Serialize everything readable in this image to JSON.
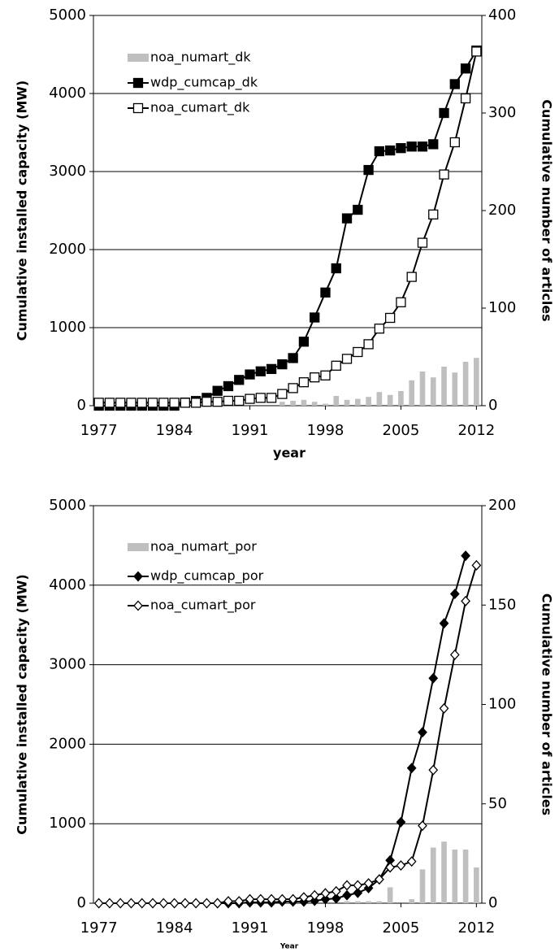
{
  "chart_data": [
    {
      "type": "combo",
      "x_label": "year",
      "y_label": "Cumulative installed capacity (MW)",
      "y2_label": "Cumulative number of articles",
      "x": [
        1977,
        1978,
        1979,
        1980,
        1981,
        1982,
        1983,
        1984,
        1985,
        1986,
        1987,
        1988,
        1989,
        1990,
        1991,
        1992,
        1993,
        1994,
        1995,
        1996,
        1997,
        1998,
        1999,
        2000,
        2001,
        2002,
        2003,
        2004,
        2005,
        2006,
        2007,
        2008,
        2009,
        2010,
        2011,
        2012
      ],
      "xlim": [
        1976.5,
        2012.5
      ],
      "xticks": [
        1977,
        1984,
        1991,
        1998,
        2005,
        2012
      ],
      "ylim": [
        0,
        5000
      ],
      "yticks": [
        0,
        1000,
        2000,
        3000,
        4000,
        5000
      ],
      "y2lim": [
        0,
        400
      ],
      "y2ticks": [
        0,
        100,
        200,
        300,
        400
      ],
      "grid": true,
      "legend": "upper left",
      "series": [
        {
          "name": "noa_numart_dk",
          "kind": "bar",
          "color": "#bfbfbf",
          "axis": "y2",
          "values": [
            0,
            0,
            0,
            0,
            0,
            0,
            0,
            0,
            0,
            0,
            0,
            0,
            0,
            0,
            0,
            0,
            0,
            4,
            5,
            6,
            4,
            2,
            10,
            6,
            7,
            9,
            14,
            11,
            15,
            26,
            35,
            29,
            40,
            34,
            45,
            49
          ]
        },
        {
          "name": "wdp_cumcap_dk",
          "kind": "line",
          "color": "#000000",
          "marker": "square",
          "marker_fill": "#000000",
          "values": [
            0,
            0,
            0,
            0,
            0,
            0,
            0,
            0,
            40,
            60,
            100,
            190,
            250,
            330,
            400,
            440,
            470,
            530,
            610,
            820,
            1130,
            1450,
            1760,
            2400,
            2510,
            3020,
            3260,
            3270,
            3300,
            3320,
            3320,
            3350,
            3750,
            4120,
            4320,
            4550
          ]
        },
        {
          "name": "noa_cumart_dk",
          "kind": "line",
          "color": "#000000",
          "marker": "square",
          "marker_fill": "#ffffff",
          "axis": "y2",
          "values": [
            3,
            3,
            3,
            3,
            3,
            3,
            3,
            3,
            3,
            3,
            4,
            4,
            5,
            5,
            7,
            8,
            8,
            12,
            18,
            24,
            29,
            31,
            41,
            48,
            55,
            63,
            79,
            90,
            106,
            132,
            167,
            196,
            237,
            270,
            315,
            363
          ]
        }
      ]
    },
    {
      "type": "combo",
      "x_label": "Year",
      "y_label": "Cumulative installed capacity (MW)",
      "y2_label": "Cumulative number of articles",
      "x": [
        1977,
        1978,
        1979,
        1980,
        1981,
        1982,
        1983,
        1984,
        1985,
        1986,
        1987,
        1988,
        1989,
        1990,
        1991,
        1992,
        1993,
        1994,
        1995,
        1996,
        1997,
        1998,
        1999,
        2000,
        2001,
        2002,
        2003,
        2004,
        2005,
        2006,
        2007,
        2008,
        2009,
        2010,
        2011,
        2012
      ],
      "xlim": [
        1976.5,
        2012.5
      ],
      "xticks": [
        1977,
        1984,
        1991,
        1998,
        2005,
        2012
      ],
      "ylim": [
        0,
        5000
      ],
      "yticks": [
        0,
        1000,
        2000,
        3000,
        4000,
        5000
      ],
      "y2lim": [
        0,
        200
      ],
      "y2ticks": [
        0,
        50,
        100,
        150,
        200
      ],
      "grid": true,
      "legend": "upper left",
      "series": [
        {
          "name": "noa_numart_por",
          "kind": "bar",
          "color": "#bfbfbf",
          "axis": "y2",
          "values": [
            0,
            0,
            0,
            0,
            0,
            0,
            0,
            0,
            0,
            0,
            0,
            0,
            0,
            0,
            0,
            0,
            0,
            0,
            0,
            0,
            0,
            0,
            0,
            1,
            1,
            1,
            1,
            8,
            0,
            2,
            17,
            28,
            31,
            27,
            27,
            18
          ]
        },
        {
          "name": "wdp_cumcap_por",
          "kind": "line",
          "color": "#000000",
          "marker": "diamond",
          "marker_fill": "#000000",
          "values": [
            null,
            null,
            null,
            null,
            null,
            null,
            null,
            null,
            null,
            null,
            null,
            0,
            0,
            0,
            10,
            10,
            10,
            20,
            20,
            20,
            30,
            50,
            60,
            100,
            130,
            190,
            300,
            540,
            1020,
            1700,
            2150,
            2830,
            3520,
            3890,
            4370,
            null
          ]
        },
        {
          "name": "noa_cumart_por",
          "kind": "line",
          "color": "#000000",
          "marker": "diamond",
          "marker_fill": "#ffffff",
          "axis": "y2",
          "values": [
            0,
            0,
            0,
            0,
            0,
            0,
            0,
            0,
            0,
            0,
            0,
            0,
            1,
            1,
            2,
            2,
            2,
            2,
            2,
            3,
            4,
            5,
            6,
            9,
            9,
            10,
            12,
            18,
            19,
            21,
            39,
            67,
            98,
            125,
            152,
            170
          ]
        }
      ]
    }
  ]
}
